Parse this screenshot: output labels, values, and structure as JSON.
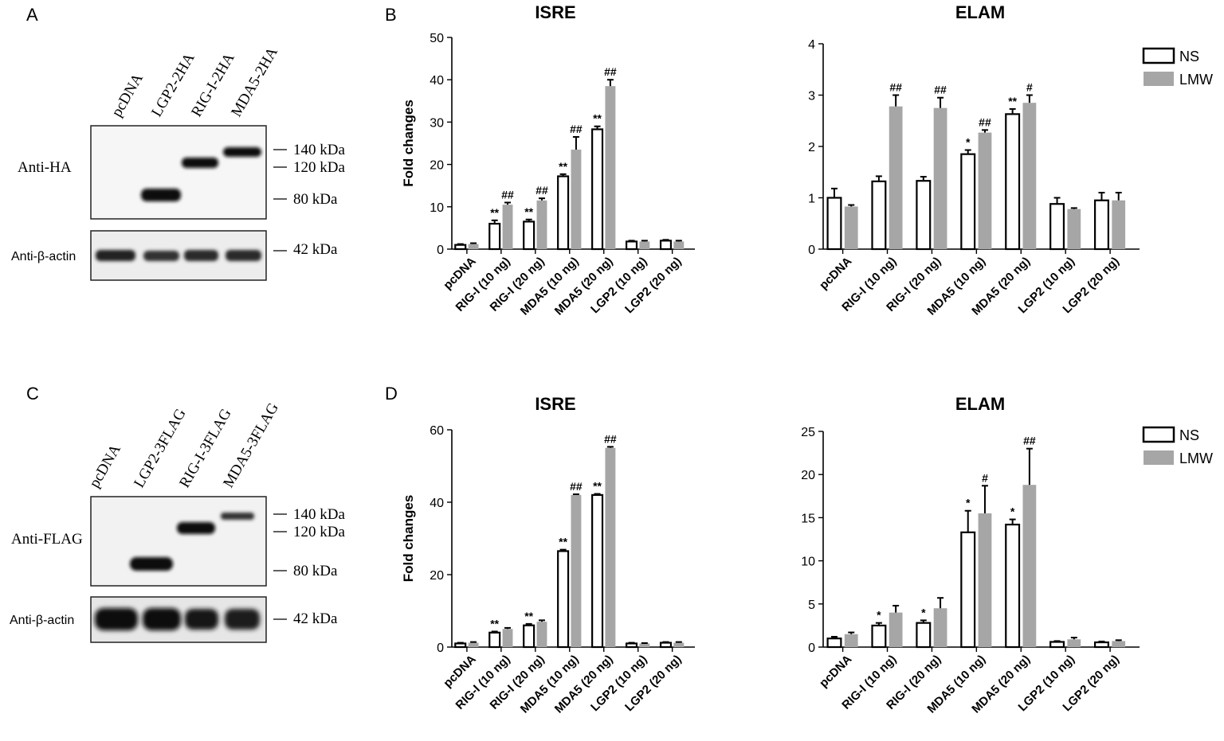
{
  "panel_labels": [
    "A",
    "B",
    "C",
    "D"
  ],
  "blot_A": {
    "lanes": [
      "pcDNA",
      "LGP2-2HA",
      "RIG-I-2HA",
      "MDA5-2HA"
    ],
    "main_antibody": "Anti-HA",
    "loading_antibody": "Anti-β-actin",
    "markers": [
      "140 kDa",
      "120 kDa",
      "80 kDa"
    ],
    "loading_marker": "42 kDa"
  },
  "blot_C": {
    "lanes": [
      "pcDNA",
      "LGP2-3FLAG",
      "RIG-I-3FLAG",
      "MDA5-3FLAG"
    ],
    "main_antibody": "Anti-FLAG",
    "loading_antibody": "Anti-β-actin",
    "markers": [
      "140 kDa",
      "120 kDa",
      "80 kDa"
    ],
    "loading_marker": "42 kDa"
  },
  "legend": [
    {
      "name": "NS",
      "color": "#ffffff"
    },
    {
      "name": "LMW",
      "color": "#a6a6a6"
    }
  ],
  "colors": {
    "ns_fill": "#ffffff",
    "lmw_fill": "#a6a6a6",
    "stroke": "#000000"
  },
  "chart_data": [
    {
      "type": "bar",
      "title": "ISRE",
      "panel": "B",
      "ylabel": "Fold changes",
      "ylim": [
        0,
        50
      ],
      "yticks": [
        0,
        10,
        20,
        30,
        40,
        50
      ],
      "categories": [
        "pcDNA",
        "RIG-I (10 ng)",
        "RIG-I (20 ng)",
        "MDA5 (10 ng)",
        "MDA5 (20 ng)",
        "LGP2 (10 ng)",
        "LGP2 (20 ng)"
      ],
      "series": [
        {
          "name": "NS",
          "values": [
            1.0,
            6.0,
            6.5,
            17.2,
            28.3,
            1.8,
            2.0
          ],
          "errors": [
            0.2,
            0.8,
            0.5,
            0.5,
            0.7,
            0.2,
            0.2
          ],
          "annotations": [
            "",
            "**",
            "**",
            "**",
            "**",
            "",
            ""
          ]
        },
        {
          "name": "LMW",
          "values": [
            1.2,
            10.5,
            11.5,
            23.5,
            38.5,
            1.8,
            1.8
          ],
          "errors": [
            0.2,
            0.5,
            0.5,
            3.0,
            1.5,
            0.2,
            0.2
          ],
          "annotations": [
            "",
            "##",
            "##",
            "##",
            "##",
            "",
            ""
          ]
        }
      ]
    },
    {
      "type": "bar",
      "title": "ELAM",
      "panel": "B",
      "ylabel": "",
      "ylim": [
        0,
        4
      ],
      "yticks": [
        0,
        1,
        2,
        3,
        4
      ],
      "categories": [
        "pcDNA",
        "RIG-I (10 ng)",
        "RIG-I (20 ng)",
        "MDA5 (10 ng)",
        "MDA5 (20 ng)",
        "LGP2 (10 ng)",
        "LGP2 (20 ng)"
      ],
      "series": [
        {
          "name": "NS",
          "values": [
            1.0,
            1.32,
            1.33,
            1.85,
            2.63,
            0.88,
            0.95
          ],
          "errors": [
            0.18,
            0.1,
            0.08,
            0.08,
            0.1,
            0.12,
            0.15
          ],
          "annotations": [
            "",
            "",
            "",
            "*",
            "**",
            "",
            ""
          ]
        },
        {
          "name": "LMW",
          "values": [
            0.83,
            2.78,
            2.75,
            2.27,
            2.85,
            0.78,
            0.95
          ],
          "errors": [
            0.03,
            0.22,
            0.2,
            0.05,
            0.15,
            0.02,
            0.15
          ],
          "annotations": [
            "",
            "##",
            "##",
            "##",
            "#",
            "",
            ""
          ]
        }
      ]
    },
    {
      "type": "bar",
      "title": "ISRE",
      "panel": "D",
      "ylabel": "Fold changes",
      "ylim": [
        0,
        60
      ],
      "yticks": [
        0,
        20,
        40,
        60
      ],
      "categories": [
        "pcDNA",
        "RIG-I (10 ng)",
        "RIG-I (20 ng)",
        "MDA5 (10 ng)",
        "MDA5 (20 ng)",
        "LGP2 (10 ng)",
        "LGP2 (20 ng)"
      ],
      "series": [
        {
          "name": "NS",
          "values": [
            1.0,
            4.0,
            6.0,
            26.5,
            42.0,
            1.0,
            1.2
          ],
          "errors": [
            0.2,
            0.3,
            0.4,
            0.4,
            0.3,
            0.2,
            0.2
          ],
          "annotations": [
            "",
            "**",
            "**",
            "**",
            "**",
            "",
            ""
          ]
        },
        {
          "name": "LMW",
          "values": [
            1.2,
            5.0,
            7.0,
            42.0,
            55.0,
            1.0,
            1.2
          ],
          "errors": [
            0.2,
            0.3,
            0.4,
            0.2,
            0.3,
            0.1,
            0.2
          ],
          "annotations": [
            "",
            "",
            "",
            "##",
            "##",
            "",
            ""
          ]
        }
      ]
    },
    {
      "type": "bar",
      "title": "ELAM",
      "panel": "D",
      "ylabel": "",
      "ylim": [
        0,
        25
      ],
      "yticks": [
        0,
        5,
        10,
        15,
        20,
        25
      ],
      "categories": [
        "pcDNA",
        "RIG-I (10 ng)",
        "RIG-I (20 ng)",
        "MDA5 (10 ng)",
        "MDA5 (20 ng)",
        "LGP2 (10 ng)",
        "LGP2 (20 ng)"
      ],
      "series": [
        {
          "name": "NS",
          "values": [
            1.0,
            2.5,
            2.8,
            13.3,
            14.2,
            0.6,
            0.55
          ],
          "errors": [
            0.2,
            0.3,
            0.3,
            2.5,
            0.6,
            0.1,
            0.1
          ],
          "annotations": [
            "",
            "*",
            "*",
            "*",
            "*",
            "",
            ""
          ]
        },
        {
          "name": "LMW",
          "values": [
            1.5,
            4.0,
            4.5,
            15.5,
            18.8,
            0.9,
            0.7
          ],
          "errors": [
            0.2,
            0.8,
            1.2,
            3.2,
            4.2,
            0.2,
            0.1
          ],
          "annotations": [
            "",
            "",
            "",
            "#",
            "##",
            "",
            ""
          ]
        }
      ]
    }
  ]
}
